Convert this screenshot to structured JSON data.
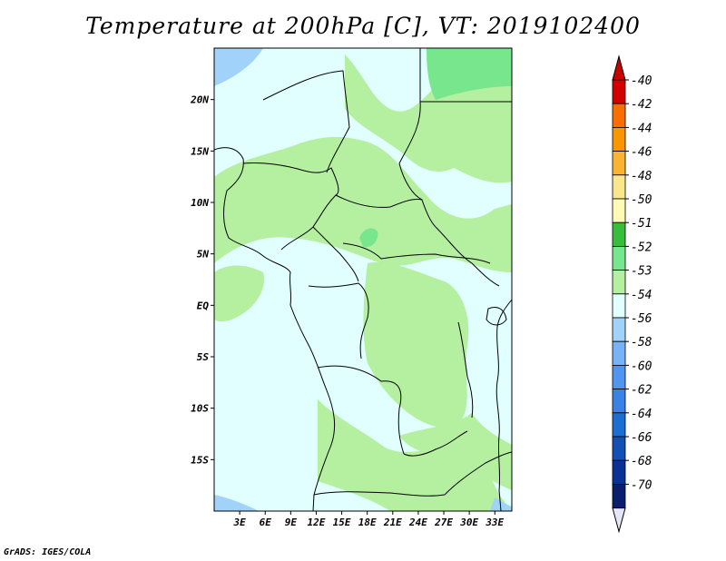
{
  "title": "Temperature at 200hPa [C], VT: 2019102400",
  "footer": "GrADS: IGES/COLA",
  "map": {
    "lon_range": [
      0,
      35
    ],
    "lat_range": [
      -20,
      25
    ],
    "lat_ticks": [
      {
        "value": 20,
        "label": "20N"
      },
      {
        "value": 15,
        "label": "15N"
      },
      {
        "value": 10,
        "label": "10N"
      },
      {
        "value": 5,
        "label": "5N"
      },
      {
        "value": 0,
        "label": "EQ"
      },
      {
        "value": -5,
        "label": "5S"
      },
      {
        "value": -10,
        "label": "10S"
      },
      {
        "value": -15,
        "label": "15S"
      }
    ],
    "lon_ticks": [
      {
        "value": 3,
        "label": "3E"
      },
      {
        "value": 6,
        "label": "6E"
      },
      {
        "value": 9,
        "label": "9E"
      },
      {
        "value": 12,
        "label": "12E"
      },
      {
        "value": 15,
        "label": "15E"
      },
      {
        "value": 18,
        "label": "18E"
      },
      {
        "value": 21,
        "label": "21E"
      },
      {
        "value": 24,
        "label": "24E"
      },
      {
        "value": 27,
        "label": "27E"
      },
      {
        "value": 30,
        "label": "30E"
      },
      {
        "value": 33,
        "label": "33E"
      }
    ],
    "colors": {
      "background": "#e1ffff",
      "light_green": "#b4f0a0",
      "green": "#78e68c",
      "blue": "#a0d2fa",
      "border": "#000000"
    }
  },
  "colorbar": {
    "levels": [
      {
        "label": "-40",
        "color": "#d20000"
      },
      {
        "label": "-42",
        "color": "#f03c00"
      },
      {
        "label": "-44",
        "color": "#fa6e00"
      },
      {
        "label": "-46",
        "color": "#fa9600"
      },
      {
        "label": "-48",
        "color": "#fab432"
      },
      {
        "label": "-50",
        "color": "#fae68c"
      },
      {
        "label": "-51",
        "color": "#fffab4"
      },
      {
        "label": "-52",
        "color": "#37be3c"
      },
      {
        "label": "-53",
        "color": "#78e68c"
      },
      {
        "label": "-54",
        "color": "#b4f0a0"
      },
      {
        "label": "-56",
        "color": "#e1ffff"
      },
      {
        "label": "-58",
        "color": "#a0d2fa"
      },
      {
        "label": "-60",
        "color": "#78b4f5"
      },
      {
        "label": "-62",
        "color": "#5096f0"
      },
      {
        "label": "-64",
        "color": "#3c82e6"
      },
      {
        "label": "-66",
        "color": "#1e6ed2"
      },
      {
        "label": "-68",
        "color": "#1450b4"
      },
      {
        "label": "-70",
        "color": "#0a3296"
      }
    ],
    "bottom_color": "#0a1e6e",
    "under_color": "#e6e6fa",
    "top_color": "#c80000"
  }
}
